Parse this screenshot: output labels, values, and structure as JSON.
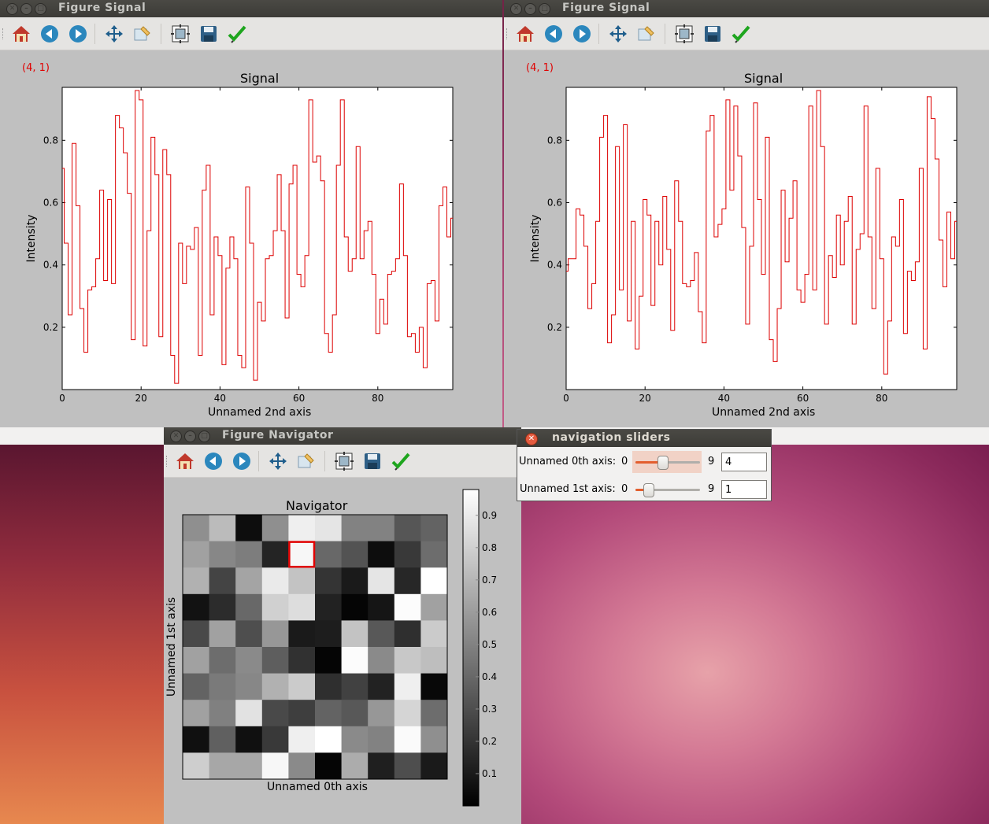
{
  "windows": {
    "signal_left": {
      "title": "Figure  Signal",
      "coord": "(4, 1)",
      "plot": {
        "title": "Signal",
        "xlabel": "Unnamed 2nd axis",
        "ylabel": "Intensity",
        "xticks": [
          "0",
          "20",
          "40",
          "60",
          "80"
        ],
        "yticks": [
          "0.2",
          "0.4",
          "0.6",
          "0.8"
        ]
      }
    },
    "signal_right": {
      "title": "Figure  Signal",
      "coord": "(4, 1)",
      "plot": {
        "title": "Signal",
        "xlabel": "Unnamed 2nd axis",
        "ylabel": "Intensity",
        "xticks": [
          "0",
          "20",
          "40",
          "60",
          "80"
        ],
        "yticks": [
          "0.2",
          "0.4",
          "0.6",
          "0.8"
        ]
      }
    },
    "navigator": {
      "title": "Figure  Navigator",
      "plot": {
        "title": "Navigator",
        "xlabel": "Unnamed 0th axis",
        "ylabel": "Unnamed 1st axis",
        "colorbar_ticks": [
          "0.9",
          "0.8",
          "0.7",
          "0.6",
          "0.5",
          "0.4",
          "0.3",
          "0.2",
          "0.1"
        ]
      }
    },
    "sliders": {
      "title": "navigation sliders",
      "rows": [
        {
          "label": "Unnamed 0th axis:",
          "min": "0",
          "max": "9",
          "value": "4"
        },
        {
          "label": "Unnamed 1st axis:",
          "min": "0",
          "max": "9",
          "value": "1"
        }
      ]
    }
  },
  "toolbar_icons": [
    "home-icon",
    "back-icon",
    "forward-icon",
    "pan-icon",
    "zoom-icon",
    "subplots-icon",
    "save-icon",
    "edit-check-icon"
  ],
  "colors": {
    "signal_line": "#dd0000",
    "cursor": "#e00000",
    "slider_accent": "#e35e2e"
  },
  "chart_data": [
    {
      "type": "line",
      "step": true,
      "title": "Signal",
      "xlabel": "Unnamed 2nd axis",
      "ylabel": "Intensity",
      "xlim": [
        0,
        99
      ],
      "ylim": [
        0.0,
        0.97
      ],
      "series": [
        {
          "values": [
            0.71,
            0.47,
            0.24,
            0.79,
            0.59,
            0.26,
            0.12,
            0.32,
            0.33,
            0.42,
            0.64,
            0.35,
            0.61,
            0.34,
            0.88,
            0.84,
            0.76,
            0.63,
            0.16,
            0.96,
            0.93,
            0.14,
            0.51,
            0.81,
            0.69,
            0.17,
            0.77,
            0.69,
            0.11,
            0.02,
            0.47,
            0.34,
            0.46,
            0.45,
            0.52,
            0.11,
            0.64,
            0.72,
            0.24,
            0.49,
            0.43,
            0.08,
            0.39,
            0.49,
            0.42,
            0.11,
            0.07,
            0.65,
            0.47,
            0.03,
            0.28,
            0.22,
            0.42,
            0.43,
            0.51,
            0.69,
            0.51,
            0.23,
            0.66,
            0.72,
            0.37,
            0.33,
            0.43,
            0.93,
            0.73,
            0.75,
            0.67,
            0.18,
            0.12,
            0.24,
            0.72,
            0.93,
            0.49,
            0.38,
            0.42,
            0.78,
            0.42,
            0.51,
            0.54,
            0.37,
            0.18,
            0.29,
            0.21,
            0.37,
            0.38,
            0.42,
            0.66,
            0.43,
            0.17,
            0.18,
            0.12,
            0.2,
            0.07,
            0.34,
            0.35,
            0.22,
            0.59,
            0.65,
            0.49,
            0.55
          ]
        }
      ]
    },
    {
      "type": "line",
      "step": true,
      "title": "Signal",
      "xlabel": "Unnamed 2nd axis",
      "ylabel": "Intensity",
      "xlim": [
        0,
        99
      ],
      "ylim": [
        0.0,
        0.97
      ],
      "series": [
        {
          "values": [
            0.38,
            0.42,
            0.42,
            0.58,
            0.56,
            0.46,
            0.26,
            0.34,
            0.54,
            0.81,
            0.88,
            0.15,
            0.24,
            0.78,
            0.32,
            0.85,
            0.22,
            0.54,
            0.13,
            0.3,
            0.61,
            0.56,
            0.27,
            0.54,
            0.4,
            0.62,
            0.45,
            0.19,
            0.67,
            0.54,
            0.34,
            0.33,
            0.35,
            0.44,
            0.25,
            0.15,
            0.83,
            0.88,
            0.49,
            0.53,
            0.58,
            0.93,
            0.64,
            0.91,
            0.75,
            0.52,
            0.21,
            0.46,
            0.92,
            0.61,
            0.37,
            0.81,
            0.16,
            0.09,
            0.26,
            0.64,
            0.41,
            0.55,
            0.67,
            0.32,
            0.28,
            0.37,
            0.91,
            0.32,
            0.96,
            0.78,
            0.21,
            0.43,
            0.36,
            0.56,
            0.4,
            0.54,
            0.62,
            0.21,
            0.45,
            0.5,
            0.91,
            0.49,
            0.26,
            0.71,
            0.42,
            0.05,
            0.22,
            0.49,
            0.46,
            0.61,
            0.18,
            0.38,
            0.35,
            0.41,
            0.71,
            0.13,
            0.94,
            0.87,
            0.74,
            0.48,
            0.33,
            0.57,
            0.42,
            0.54
          ]
        }
      ]
    },
    {
      "type": "heatmap",
      "title": "Navigator",
      "xlabel": "Unnamed 0th axis",
      "ylabel": "Unnamed 1st axis",
      "colormap": "gray",
      "vlim": [
        0.0,
        0.98
      ],
      "selected": [
        4,
        1
      ],
      "z": [
        [
          0.55,
          0.72,
          0.05,
          0.55,
          0.92,
          0.88,
          0.5,
          0.5,
          0.33,
          0.38
        ],
        [
          0.62,
          0.52,
          0.48,
          0.14,
          0.95,
          0.4,
          0.32,
          0.05,
          0.22,
          0.42
        ],
        [
          0.68,
          0.26,
          0.63,
          0.9,
          0.75,
          0.2,
          0.1,
          0.88,
          0.15,
          0.98
        ],
        [
          0.07,
          0.17,
          0.4,
          0.8,
          0.85,
          0.13,
          0.02,
          0.08,
          0.97,
          0.62
        ],
        [
          0.28,
          0.62,
          0.3,
          0.58,
          0.1,
          0.11,
          0.75,
          0.34,
          0.18,
          0.78
        ],
        [
          0.62,
          0.42,
          0.53,
          0.36,
          0.19,
          0.02,
          0.97,
          0.53,
          0.77,
          0.73
        ],
        [
          0.38,
          0.47,
          0.52,
          0.68,
          0.78,
          0.18,
          0.25,
          0.13,
          0.92,
          0.03
        ],
        [
          0.62,
          0.49,
          0.87,
          0.28,
          0.24,
          0.38,
          0.34,
          0.58,
          0.82,
          0.42
        ],
        [
          0.06,
          0.37,
          0.06,
          0.22,
          0.92,
          0.98,
          0.53,
          0.5,
          0.96,
          0.55
        ],
        [
          0.79,
          0.64,
          0.64,
          0.95,
          0.53,
          0.02,
          0.66,
          0.12,
          0.3,
          0.1
        ]
      ]
    }
  ]
}
